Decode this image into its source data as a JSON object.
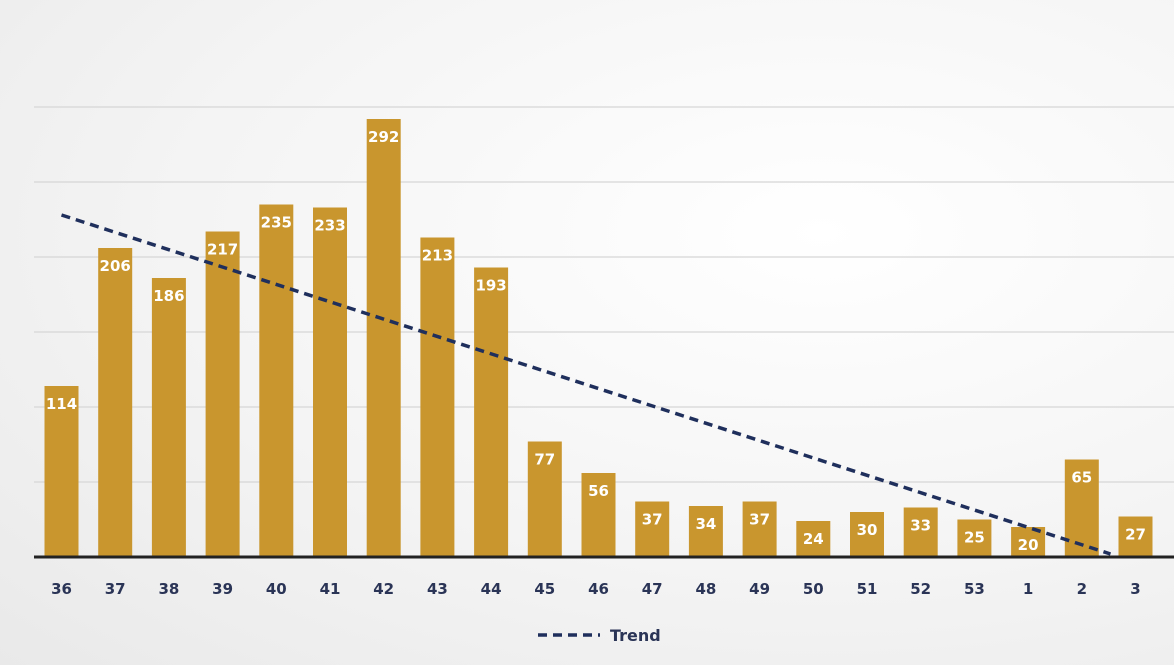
{
  "chart_data": {
    "type": "bar",
    "title": "",
    "xlabel": "",
    "ylabel": "",
    "categories": [
      "36",
      "37",
      "38",
      "39",
      "40",
      "41",
      "42",
      "43",
      "44",
      "45",
      "46",
      "47",
      "48",
      "49",
      "50",
      "51",
      "52",
      "53",
      "1",
      "2",
      "3"
    ],
    "values": [
      114,
      206,
      186,
      217,
      235,
      233,
      292,
      213,
      193,
      77,
      56,
      37,
      34,
      37,
      24,
      30,
      33,
      25,
      20,
      65,
      27
    ],
    "value_labels": [
      "114",
      "206",
      "186",
      "217",
      "235",
      "233",
      "292",
      "213",
      "193",
      "77",
      "56",
      "37",
      "34",
      "37",
      "24",
      "30",
      "33",
      "25",
      "20",
      "65",
      "27"
    ],
    "ylim": [
      0,
      300
    ],
    "grid": true,
    "bar_color": "#c9962e",
    "trend": {
      "name": "Trend",
      "style": "dashed",
      "color": "#1f2f5c",
      "start": 228,
      "end": 2
    },
    "legend": {
      "position": "bottom",
      "entries": [
        "Trend"
      ]
    }
  },
  "colors": {
    "gridline": "#d6d6d6",
    "axis": "#222222",
    "tick_text": "#2a3456"
  }
}
